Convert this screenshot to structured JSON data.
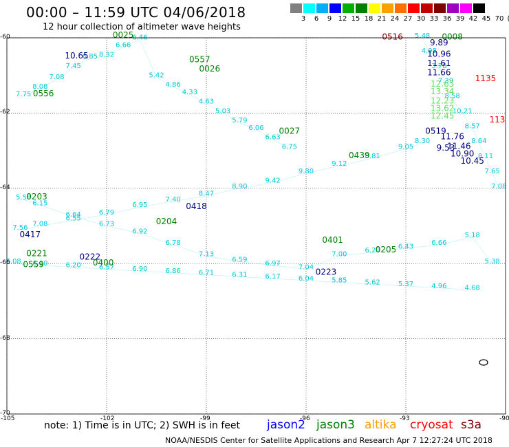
{
  "title": "00:00 – 11:59 UTC 04/06/2018",
  "subtitle": "12 hour collection of altimeter wave heights",
  "legend": {
    "unit": "(ft)",
    "colors": [
      "#808080",
      "#00ffff",
      "#00b0ff",
      "#0000ff",
      "#00b000",
      "#008000",
      "#ffff00",
      "#ffa000",
      "#ff7000",
      "#ff0000",
      "#c00000",
      "#800000",
      "#a000c0",
      "#ff00ff",
      "#000000"
    ],
    "labels": [
      "3",
      "6",
      "9",
      "12",
      "15",
      "18",
      "21",
      "24",
      "27",
      "30",
      "33",
      "36",
      "39",
      "42",
      "45",
      "70"
    ]
  },
  "map": {
    "lon_range": [
      -105,
      -90
    ],
    "lat_range": [
      -70,
      -60
    ],
    "x_ticks": [
      "-105",
      "-102",
      "-99",
      "-96",
      "-93",
      "-90"
    ],
    "y_ticks": [
      "-60",
      "-62",
      "-64",
      "-66",
      "-68",
      "-70"
    ]
  },
  "tracks": [
    {
      "color": "#00c8d8",
      "points": [
        [
          -104.5,
          -61.55,
          "7.75"
        ],
        [
          -104.0,
          -61.35,
          "8.08"
        ],
        [
          -103.5,
          -61.1,
          "7.08"
        ],
        [
          -103.0,
          -60.8,
          "7.45"
        ],
        [
          -102.5,
          -60.55,
          "6.85"
        ],
        [
          -102.0,
          -60.5,
          "8.32"
        ],
        [
          -101.5,
          -60.25,
          "6.66"
        ],
        [
          -101.0,
          -60.05,
          "6.46"
        ],
        [
          -100.5,
          -61.05,
          "5.42"
        ],
        [
          -100.0,
          -61.3,
          "4.86"
        ],
        [
          -99.5,
          -61.5,
          "4.33"
        ],
        [
          -99.0,
          -61.75,
          "4.63"
        ],
        [
          -98.5,
          -62.0,
          "5.03"
        ],
        [
          -98.0,
          -62.25,
          "5.79"
        ],
        [
          -97.5,
          -62.45,
          "6.06"
        ],
        [
          -97.0,
          -62.7,
          "6.63"
        ],
        [
          -96.5,
          -62.95,
          "6.75"
        ]
      ]
    },
    {
      "color": "#00c8d8",
      "points": [
        [
          -92.5,
          -60.0,
          "5.48"
        ],
        [
          -92.3,
          -60.4,
          "4.98"
        ],
        [
          -92.0,
          -60.8,
          "3.78"
        ],
        [
          -91.8,
          -61.2,
          "7.39"
        ],
        [
          -91.6,
          -61.6,
          "8.58"
        ],
        [
          -91.3,
          -62.0,
          "10.21"
        ],
        [
          -91.0,
          -62.4,
          "8.57"
        ],
        [
          -90.8,
          -62.8,
          "8.64"
        ],
        [
          -90.6,
          -63.2,
          "8.11"
        ],
        [
          -90.4,
          -63.6,
          "7.65"
        ],
        [
          -90.2,
          -64.0,
          "7.08"
        ]
      ]
    },
    {
      "color": "#00c8d8",
      "points": [
        [
          -104.6,
          -65.1,
          "7.56"
        ],
        [
          -104.0,
          -65.0,
          "7.08"
        ],
        [
          -103.0,
          -64.85,
          "6.55"
        ],
        [
          -102.0,
          -64.7,
          "6.79"
        ],
        [
          -101.0,
          -64.5,
          "6.95"
        ],
        [
          -100.0,
          -64.35,
          "7.40"
        ],
        [
          -99.0,
          -64.2,
          "8.47"
        ],
        [
          -98.0,
          -64.0,
          "8.90"
        ],
        [
          -97.0,
          -63.85,
          "9.42"
        ],
        [
          -96.0,
          -63.6,
          "9.80"
        ],
        [
          -95.0,
          -63.4,
          "9.12"
        ],
        [
          -94.0,
          -63.2,
          "8.81"
        ],
        [
          -93.0,
          -62.95,
          "9.05"
        ],
        [
          -92.5,
          -62.8,
          "8.30"
        ]
      ]
    },
    {
      "color": "#00c8d8",
      "points": [
        [
          -104.8,
          -66.0,
          "6.08"
        ],
        [
          -104.0,
          -66.05,
          "6.10"
        ],
        [
          -103.0,
          -66.1,
          "6.20"
        ],
        [
          -102.0,
          -66.15,
          "6.57"
        ],
        [
          -101.0,
          -66.2,
          "6.90"
        ],
        [
          -100.0,
          -66.25,
          "6.86"
        ],
        [
          -99.0,
          -66.3,
          "6.71"
        ],
        [
          -98.0,
          -66.35,
          "6.31"
        ],
        [
          -97.0,
          -66.4,
          "6.17"
        ],
        [
          -96.0,
          -66.45,
          "6.04"
        ],
        [
          -95.0,
          -66.5,
          "5.85"
        ],
        [
          -94.0,
          -66.55,
          "5.62"
        ],
        [
          -93.0,
          -66.6,
          "5.37"
        ],
        [
          -92.0,
          -66.65,
          "4.96"
        ],
        [
          -91.0,
          -66.7,
          "4.68"
        ]
      ]
    },
    {
      "color": "#00c8d8",
      "points": [
        [
          -104.5,
          -64.3,
          "5.58"
        ],
        [
          -104.0,
          -64.45,
          "6.15"
        ],
        [
          -103.0,
          -64.75,
          "6.64"
        ],
        [
          -102.0,
          -65.0,
          "6.73"
        ],
        [
          -101.0,
          -65.2,
          "6.92"
        ],
        [
          -100.0,
          -65.5,
          "6.78"
        ],
        [
          -99.0,
          -65.8,
          "7.13"
        ],
        [
          -98.0,
          -65.95,
          "6.59"
        ],
        [
          -97.0,
          -66.05,
          "6.97"
        ],
        [
          -96.0,
          -66.15,
          "7.04"
        ],
        [
          -95.0,
          -65.8,
          "7.00"
        ],
        [
          -94.0,
          -65.7,
          "6.29"
        ],
        [
          -93.0,
          -65.6,
          "6.43"
        ],
        [
          -92.0,
          -65.5,
          "6.66"
        ],
        [
          -91.0,
          -65.3,
          "5.18"
        ],
        [
          -90.4,
          -66.0,
          "5.38"
        ]
      ]
    }
  ],
  "labels": [
    {
      "text": "0025",
      "color": "#008000",
      "lon": -101.5,
      "lat": -60.0
    },
    {
      "text": "0557",
      "color": "#008000",
      "lon": -99.2,
      "lat": -60.65
    },
    {
      "text": "0026",
      "color": "#008000",
      "lon": -98.9,
      "lat": -60.9
    },
    {
      "text": "0556",
      "color": "#008000",
      "lon": -103.9,
      "lat": -61.55
    },
    {
      "text": "10.65",
      "color": "#000080",
      "lon": -102.9,
      "lat": -60.55
    },
    {
      "text": "0516",
      "color": "#800000",
      "lon": -93.4,
      "lat": -60.05
    },
    {
      "text": "0008",
      "color": "#008000",
      "lon": -91.6,
      "lat": -60.05
    },
    {
      "text": "9.89",
      "color": "#000080",
      "lon": -92.0,
      "lat": -60.2
    },
    {
      "text": "10.96",
      "color": "#000080",
      "lon": -92.0,
      "lat": -60.5
    },
    {
      "text": "11.61",
      "color": "#000080",
      "lon": -92.0,
      "lat": -60.75
    },
    {
      "text": "11.66",
      "color": "#000080",
      "lon": -92.0,
      "lat": -61.0
    },
    {
      "text": "1135",
      "color": "#ff0000",
      "lon": -90.6,
      "lat": -61.15
    },
    {
      "text": "12.65",
      "color": "#60e060",
      "lon": -91.9,
      "lat": -61.3
    },
    {
      "text": "13.34",
      "color": "#60e060",
      "lon": -91.9,
      "lat": -61.5
    },
    {
      "text": "12.23",
      "color": "#60e060",
      "lon": -91.9,
      "lat": -61.75
    },
    {
      "text": "13.62",
      "color": "#60e060",
      "lon": -91.9,
      "lat": -61.95
    },
    {
      "text": "12.45",
      "color": "#60e060",
      "lon": -91.9,
      "lat": -62.15
    },
    {
      "text": "113",
      "color": "#ff0000",
      "lon": -90.25,
      "lat": -62.25
    },
    {
      "text": "0519",
      "color": "#000080",
      "lon": -92.1,
      "lat": -62.55
    },
    {
      "text": "11.76",
      "color": "#000080",
      "lon": -91.6,
      "lat": -62.7
    },
    {
      "text": "11.46",
      "color": "#000080",
      "lon": -91.4,
      "lat": -62.95
    },
    {
      "text": "10.90",
      "color": "#000080",
      "lon": -91.3,
      "lat": -63.15
    },
    {
      "text": "10.45",
      "color": "#000080",
      "lon": -91.0,
      "lat": -63.35
    },
    {
      "text": "9.53",
      "color": "#000080",
      "lon": -91.8,
      "lat": -63.0
    },
    {
      "text": "0027",
      "color": "#008000",
      "lon": -96.5,
      "lat": -62.55
    },
    {
      "text": "0439",
      "color": "#008000",
      "lon": -94.4,
      "lat": -63.2
    },
    {
      "text": "0203",
      "color": "#008000",
      "lon": -104.1,
      "lat": -64.3
    },
    {
      "text": "0418",
      "color": "#000080",
      "lon": -99.3,
      "lat": -64.55
    },
    {
      "text": "0204",
      "color": "#008000",
      "lon": -100.2,
      "lat": -64.95
    },
    {
      "text": "0417",
      "color": "#000080",
      "lon": -104.3,
      "lat": -65.3
    },
    {
      "text": "0401",
      "color": "#008000",
      "lon": -95.2,
      "lat": -65.45
    },
    {
      "text": "0205",
      "color": "#008000",
      "lon": -93.6,
      "lat": -65.7
    },
    {
      "text": "0221",
      "color": "#008000",
      "lon": -104.1,
      "lat": -65.8
    },
    {
      "text": "0222",
      "color": "#000080",
      "lon": -102.5,
      "lat": -65.9
    },
    {
      "text": "0400",
      "color": "#008000",
      "lon": -102.1,
      "lat": -66.05
    },
    {
      "text": "0559",
      "color": "#008000",
      "lon": -104.2,
      "lat": -66.1
    },
    {
      "text": "0223",
      "color": "#000080",
      "lon": -95.4,
      "lat": -66.3
    }
  ],
  "note": "note: 1) Time is in UTC; 2) SWH is in feet",
  "satellites": [
    {
      "name": "jason2",
      "color": "#0000ff"
    },
    {
      "name": "jason3",
      "color": "#008000"
    },
    {
      "name": "altika",
      "color": "#ffa000"
    },
    {
      "name": "cryosat",
      "color": "#ff0000"
    },
    {
      "name": "s3a",
      "color": "#800000"
    }
  ],
  "footer": "NOAA/NESDIS Center for Satellite Applications and Research   Apr  7 12:27:24 UTC 2018"
}
